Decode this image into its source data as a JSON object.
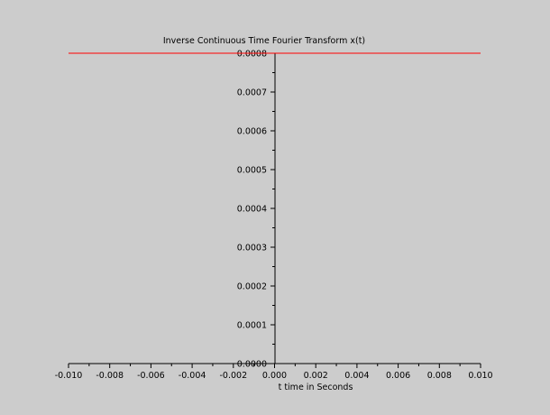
{
  "chart_data": {
    "type": "line",
    "title": "Inverse Continuous Time Fourier Transform x(t)",
    "xlabel": "t time in Seconds",
    "ylabel": "",
    "xlim": [
      -0.01,
      0.01
    ],
    "ylim": [
      0,
      0.0008
    ],
    "xticks": [
      "-0.010",
      "-0.008",
      "-0.006",
      "-0.004",
      "-0.002",
      "0.000",
      "0.002",
      "0.004",
      "0.006",
      "0.008",
      "0.010"
    ],
    "yticks": [
      "0.0000",
      "0.0001",
      "0.0002",
      "0.0003",
      "0.0004",
      "0.0005",
      "0.0006",
      "0.0007",
      "0.0008"
    ],
    "grid": false,
    "series": [
      {
        "color": "#ff0000",
        "x": [
          -0.01,
          0.01
        ],
        "y": [
          0.0008,
          0.0008
        ]
      }
    ]
  }
}
